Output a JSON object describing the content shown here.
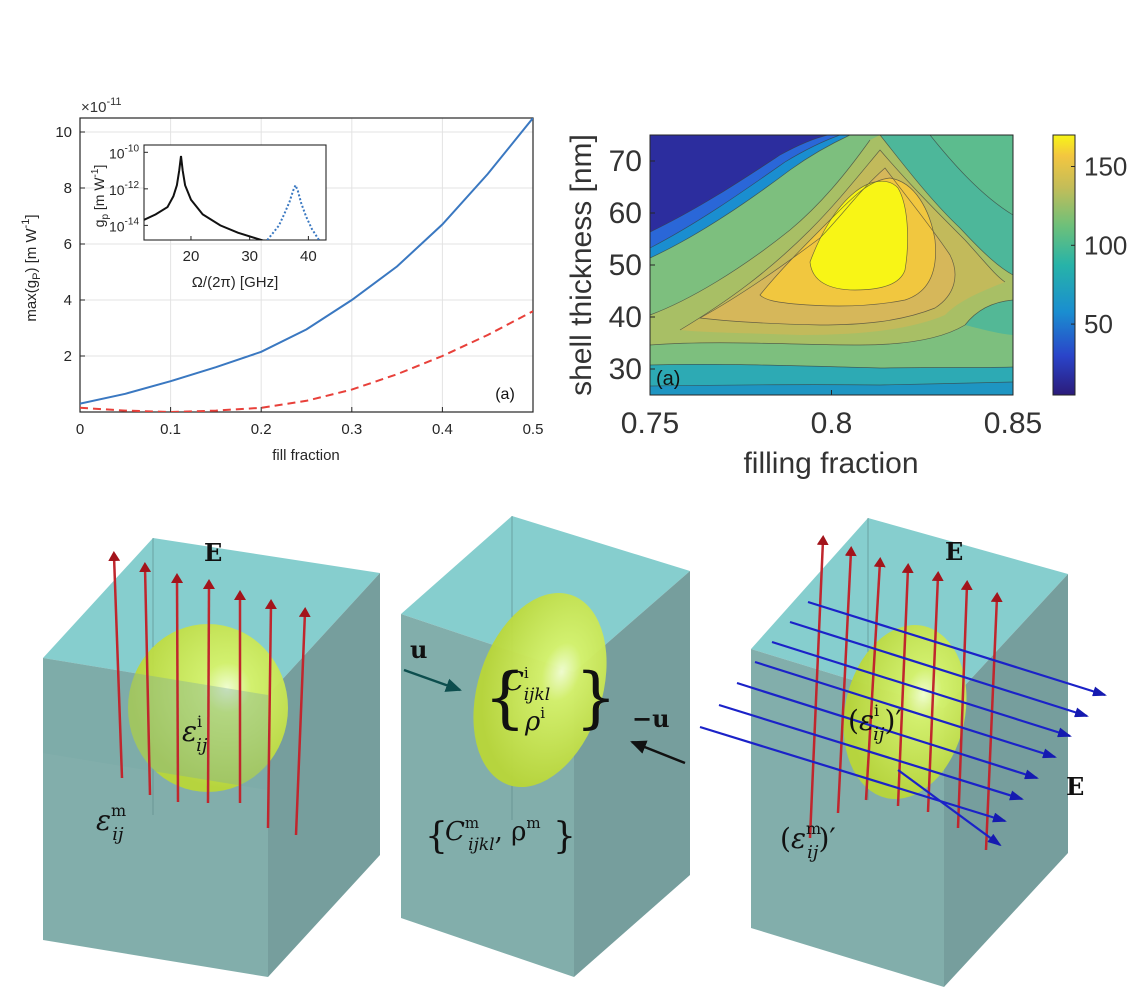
{
  "chart_data": [
    {
      "type": "line",
      "title": "",
      "xlabel": "fill fraction",
      "ylabel": "max(g_P)  [m W^-1]",
      "ylabel_parts": {
        "pre": "max(g",
        "sub": "P",
        "mid": ")  [m W",
        "sup": "-1",
        "post": "]"
      },
      "exponent_label": {
        "pre": "×10",
        "sup": "-11"
      },
      "xlim": [
        0,
        0.5
      ],
      "ylim": [
        0,
        10.5
      ],
      "x_ticks": [
        "0",
        "0.1",
        "0.2",
        "0.3",
        "0.4",
        "0.5"
      ],
      "y_ticks": [
        "2",
        "4",
        "6",
        "8",
        "10"
      ],
      "grid": true,
      "panel_label": "(a)",
      "series": [
        {
          "style": "solid",
          "color": "#3a78c1",
          "x": [
            0,
            0.05,
            0.1,
            0.15,
            0.2,
            0.25,
            0.3,
            0.35,
            0.4,
            0.45,
            0.5
          ],
          "y": [
            0.3,
            0.65,
            1.1,
            1.6,
            2.15,
            2.95,
            4.0,
            5.2,
            6.7,
            8.5,
            10.5
          ]
        },
        {
          "style": "dashed",
          "color": "#e8403a",
          "x": [
            0,
            0.05,
            0.1,
            0.15,
            0.2,
            0.25,
            0.3,
            0.35,
            0.4,
            0.45,
            0.5
          ],
          "y": [
            0.15,
            0.05,
            0.0,
            0.05,
            0.15,
            0.4,
            0.8,
            1.35,
            2.0,
            2.75,
            3.6
          ]
        }
      ],
      "inset": {
        "type": "line",
        "xlabel": "Ω/(2π) [GHz]",
        "ylabel_parts": {
          "pre": "g",
          "sub": "p",
          "mid": "  [m W",
          "sup": "-1",
          "post": "]"
        },
        "xlim": [
          12,
          43
        ],
        "log_y": true,
        "y_ticks": [
          {
            "base": "10",
            "sup": "-10",
            "exp": -10
          },
          {
            "base": "10",
            "sup": "-12",
            "exp": -12
          },
          {
            "base": "10",
            "sup": "-14",
            "exp": -14
          }
        ],
        "x_ticks": [
          "20",
          "30",
          "40"
        ],
        "ylim_exp": [
          -14.8,
          -9.6
        ],
        "series": [
          {
            "style": "solid",
            "color": "#111111",
            "x": [
              12,
              14,
              16,
              17,
              17.6,
              18,
              18.3,
              18.6,
              19,
              20,
              22,
              25,
              28,
              31,
              33
            ],
            "y_exp": [
              -13.7,
              -13.4,
              -13.0,
              -12.4,
              -11.8,
              -11.0,
              -10.2,
              -11.0,
              -11.8,
              -12.6,
              -13.4,
              -14.0,
              -14.4,
              -14.7,
              -14.9
            ]
          },
          {
            "style": "dotted",
            "color": "#3a78c1",
            "x": [
              33,
              34,
              35,
              36,
              36.8,
              37.4,
              37.8,
              38.2,
              38.8,
              39.6,
              40.6,
              42
            ],
            "y_exp": [
              -14.8,
              -14.4,
              -14.0,
              -13.3,
              -12.7,
              -12.1,
              -11.8,
              -12.1,
              -12.8,
              -13.5,
              -14.2,
              -14.9
            ]
          }
        ]
      }
    },
    {
      "type": "heatmap",
      "title": "",
      "xlabel": "filling fraction",
      "ylabel": "shell thickness [nm]",
      "xlim": [
        0.75,
        0.85
      ],
      "ylim": [
        25,
        75
      ],
      "x_ticks": [
        "0.75",
        "0.8",
        "0.85"
      ],
      "y_ticks": [
        "30",
        "40",
        "50",
        "60",
        "70"
      ],
      "colorbar_ticks": [
        "50",
        "100",
        "150"
      ],
      "colorbar_range": [
        5,
        170
      ],
      "panel_label": "(a)",
      "peak": {
        "x": 0.808,
        "y": 55,
        "value": 165
      }
    }
  ],
  "diagram": {
    "cubes": [
      {
        "field_label": "E",
        "inclusion_label": {
          "base": "ε",
          "sup": "i",
          "sub": "ij"
        },
        "matrix_label": {
          "base": "ε",
          "sup": "m",
          "sub": "ij"
        }
      },
      {
        "vector_left": "u",
        "vector_right": "−u",
        "inclusion_label": {
          "c_sup": "i",
          "c_sub": "ijkl",
          "rho_sup": "i"
        },
        "matrix_label": {
          "c_sup": "m",
          "c_sub": "ijkl",
          "rho_sup": "m"
        }
      },
      {
        "field_label_top": "E",
        "field_label_side": "E",
        "inclusion_label": {
          "base": "ε",
          "sup": "i",
          "sub": "ij",
          "prime": "′"
        },
        "matrix_label": {
          "base": "ε",
          "sup": "m",
          "sub": "ij",
          "prime": "′"
        }
      }
    ],
    "colors": {
      "cube_front": "#79a8a5",
      "cube_side": "#6f9998",
      "cube_top": "#7ccaca",
      "inclusion": "#d9e94a",
      "arrow_red": "#c0262d",
      "arrow_blue": "#1b22c8"
    }
  }
}
